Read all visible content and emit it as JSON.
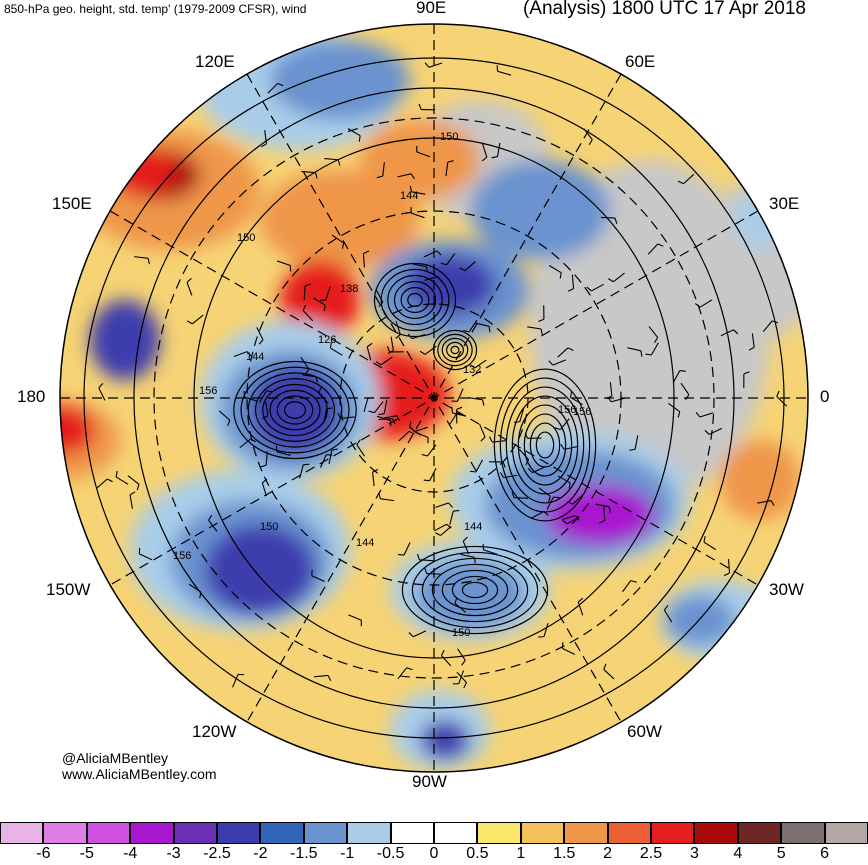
{
  "header": {
    "left_title": "850-hPa geo. height, std. temp' (1979-2009 CFSR), wind",
    "right_title": "(Analysis) 1800 UTC 17 Apr 2018"
  },
  "longitude_labels": {
    "e90": "90E",
    "e60": "60E",
    "e120": "120E",
    "e150": "150E",
    "e30": "30E",
    "deg180": "180",
    "deg0": "0",
    "w150": "150W",
    "w30": "30W",
    "w120": "120W",
    "w60": "60W",
    "w90": "90W"
  },
  "credits": {
    "handle": "@AliciaMBentley",
    "site": "www.AliciaMBentley.com"
  },
  "contour_labels": [
    "150",
    "144",
    "150",
    "138",
    "126",
    "144",
    "156",
    "132",
    "156",
    "156",
    "150",
    "144",
    "150",
    "156",
    "144"
  ],
  "colorbar": {
    "ticks": [
      "-6",
      "-5",
      "-4",
      "-3",
      "-2.5",
      "-2",
      "-1.5",
      "-1",
      "-0.5",
      "0",
      "0.5",
      "1",
      "1.5",
      "2",
      "2.5",
      "3",
      "4",
      "5",
      "6"
    ],
    "colors": [
      "#e8b4e8",
      "#e07ee8",
      "#cf4fe0",
      "#a817d0",
      "#6a2fb4",
      "#3c3cae",
      "#3366bb",
      "#6a93cf",
      "#a9cde9",
      "#ffffff",
      "#ffffff",
      "#fbe86a",
      "#f3c25b",
      "#ef9648",
      "#ec5e33",
      "#e51d1d",
      "#a90b0b",
      "#6e2525",
      "#7b6f6f",
      "#b5a6a6"
    ]
  },
  "anomaly_colors": {
    "deep_blue": "#3c3cae",
    "mid_blue": "#6a93cf",
    "light_blue": "#a9cde9",
    "purple": "#a817d0",
    "yellow": "#fbe86a",
    "orange": "#ef9648",
    "red": "#e51d1d",
    "dark_red": "#a90b0b",
    "land_gray": "#c8c8c8"
  }
}
